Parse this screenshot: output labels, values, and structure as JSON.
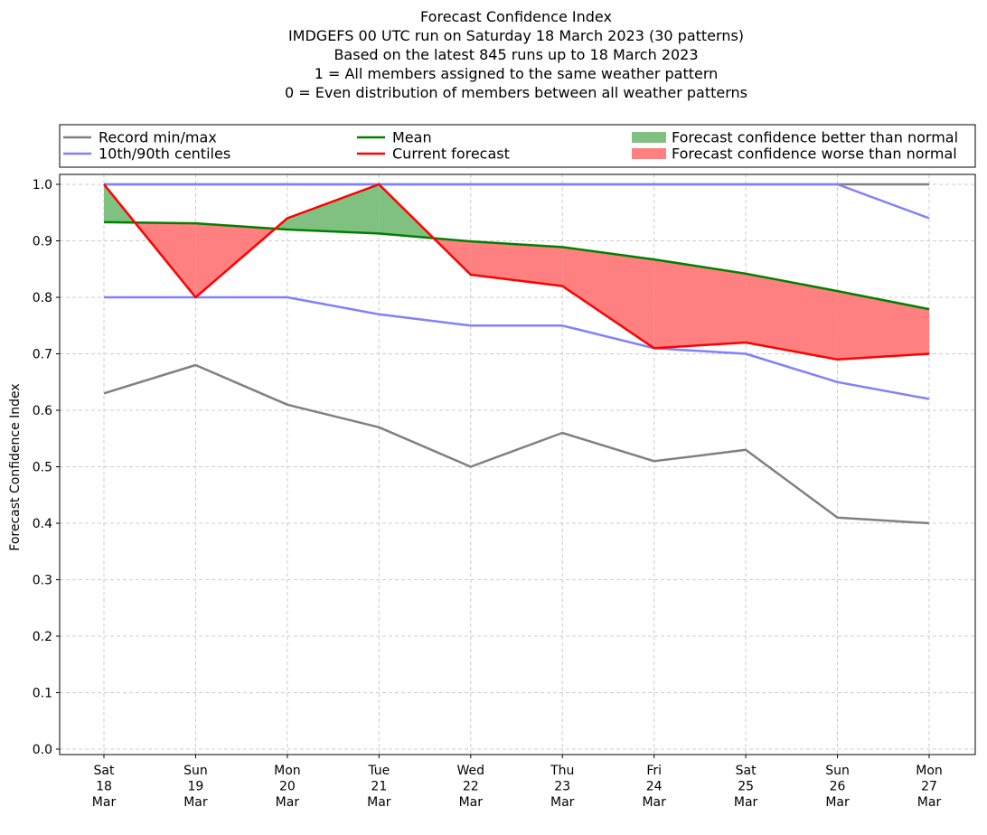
{
  "chart_data": {
    "type": "line",
    "title_lines": [
      "Forecast Confidence Index",
      "IMDGEFS 00 UTC run on Saturday 18 March 2023 (30 patterns)",
      "Based on the latest 845 runs up to 18 March 2023",
      "1 = All members assigned to the same weather pattern",
      "0 = Even distribution of members between all weather patterns"
    ],
    "ylabel": "Forecast Confidence Index",
    "ylim": [
      0.0,
      1.0
    ],
    "yticks": [
      "0.0",
      "0.1",
      "0.2",
      "0.3",
      "0.4",
      "0.5",
      "0.6",
      "0.7",
      "0.8",
      "0.9",
      "1.0"
    ],
    "grid": true,
    "legend_position": "top",
    "categories": [
      [
        "Sat",
        "18",
        "Mar"
      ],
      [
        "Sun",
        "19",
        "Mar"
      ],
      [
        "Mon",
        "20",
        "Mar"
      ],
      [
        "Tue",
        "21",
        "Mar"
      ],
      [
        "Wed",
        "22",
        "Mar"
      ],
      [
        "Thu",
        "23",
        "Mar"
      ],
      [
        "Fri",
        "24",
        "Mar"
      ],
      [
        "Sat",
        "25",
        "Mar"
      ],
      [
        "Sun",
        "26",
        "Mar"
      ],
      [
        "Mon",
        "27",
        "Mar"
      ]
    ],
    "series": {
      "record_max": [
        1.0,
        1.0,
        1.0,
        1.0,
        1.0,
        1.0,
        1.0,
        1.0,
        1.0,
        1.0
      ],
      "record_min": [
        0.63,
        0.68,
        0.61,
        0.57,
        0.5,
        0.56,
        0.51,
        0.53,
        0.41,
        0.4
      ],
      "centile_90": [
        1.0,
        1.0,
        1.0,
        1.0,
        1.0,
        1.0,
        1.0,
        1.0,
        1.0,
        0.94
      ],
      "centile_10": [
        0.8,
        0.8,
        0.8,
        0.77,
        0.75,
        0.75,
        0.71,
        0.7,
        0.65,
        0.62
      ],
      "mean": [
        0.933,
        0.931,
        0.92,
        0.913,
        0.899,
        0.889,
        0.867,
        0.842,
        0.811,
        0.779
      ],
      "current": [
        1.0,
        0.8,
        0.94,
        1.0,
        0.84,
        0.82,
        0.71,
        0.72,
        0.69,
        0.7
      ]
    },
    "legend": [
      {
        "key": "record",
        "label": "Record min/max",
        "kind": "line",
        "color": "#808080"
      },
      {
        "key": "mean",
        "label": "Mean",
        "kind": "line",
        "color": "#008000"
      },
      {
        "key": "better",
        "label": "Forecast confidence better than normal",
        "kind": "patch",
        "color": "#80c080"
      },
      {
        "key": "centiles",
        "label": "10th/90th centiles",
        "kind": "line",
        "color": "#8080ff"
      },
      {
        "key": "current",
        "label": "Current forecast",
        "kind": "line",
        "color": "#ff0000"
      },
      {
        "key": "worse",
        "label": "Forecast confidence worse than normal",
        "kind": "patch",
        "color": "#ff8080"
      }
    ],
    "colors": {
      "record": "#808080",
      "centiles": "#8080ff",
      "mean": "#008000",
      "current": "#ff0000",
      "better_fill": "#80c080",
      "worse_fill": "#ff8080",
      "grid": "#cccccc"
    }
  }
}
